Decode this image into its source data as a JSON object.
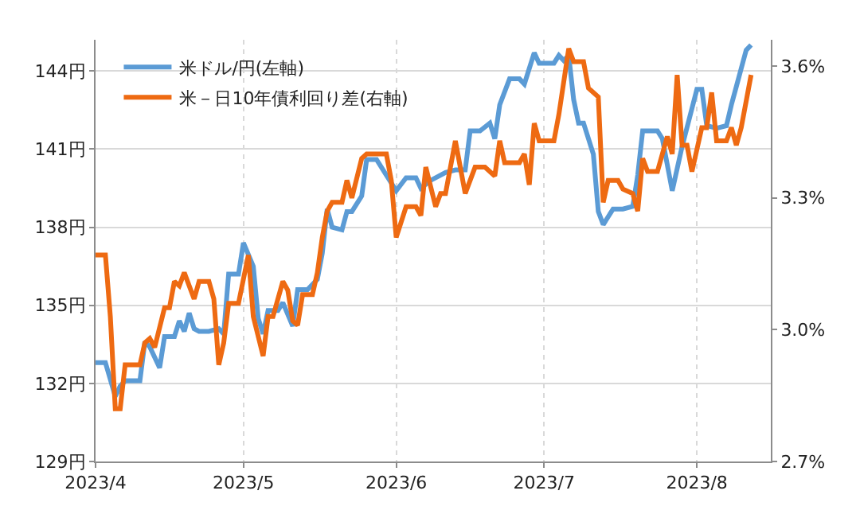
{
  "chart_data": {
    "type": "line",
    "series": [
      {
        "name": "米ドル/円(左軸)",
        "color": "#5b9bd5",
        "axis": "y",
        "x": [
          "2023-04-01",
          "2023-04-03",
          "2023-04-05",
          "2023-04-06",
          "2023-04-07",
          "2023-04-10",
          "2023-04-11",
          "2023-04-12",
          "2023-04-14",
          "2023-04-15",
          "2023-04-17",
          "2023-04-18",
          "2023-04-19",
          "2023-04-20",
          "2023-04-21",
          "2023-04-22",
          "2023-04-24",
          "2023-04-26",
          "2023-04-27",
          "2023-04-28",
          "2023-04-30",
          "2023-05-01",
          "2023-05-03",
          "2023-05-04",
          "2023-05-05",
          "2023-05-06",
          "2023-05-08",
          "2023-05-09",
          "2023-05-11",
          "2023-05-12",
          "2023-05-14",
          "2023-05-16",
          "2023-05-17",
          "2023-05-18",
          "2023-05-19",
          "2023-05-21",
          "2023-05-22",
          "2023-05-23",
          "2023-05-25",
          "2023-05-26",
          "2023-05-28",
          "2023-05-30",
          "2023-06-01",
          "2023-06-03",
          "2023-06-05",
          "2023-06-06",
          "2023-06-08",
          "2023-06-11",
          "2023-06-13",
          "2023-06-15",
          "2023-06-16",
          "2023-06-18",
          "2023-06-20",
          "2023-06-21",
          "2023-06-22",
          "2023-06-24",
          "2023-06-26",
          "2023-06-27",
          "2023-06-28",
          "2023-06-29",
          "2023-06-30",
          "2023-07-03",
          "2023-07-04",
          "2023-07-05",
          "2023-07-06",
          "2023-07-07",
          "2023-07-08",
          "2023-07-09",
          "2023-07-11",
          "2023-07-12",
          "2023-07-13",
          "2023-07-15",
          "2023-07-17",
          "2023-07-19",
          "2023-07-20",
          "2023-07-21",
          "2023-07-24",
          "2023-07-25",
          "2023-07-27",
          "2023-07-29",
          "2023-08-01",
          "2023-08-02",
          "2023-08-03",
          "2023-08-05",
          "2023-08-07",
          "2023-08-08",
          "2023-08-09",
          "2023-08-10",
          "2023-08-11",
          "2023-08-12"
        ],
        "values": [
          132.8,
          132.8,
          131.5,
          131.9,
          132.1,
          132.1,
          133.6,
          133.4,
          132.6,
          133.8,
          133.8,
          134.4,
          134.0,
          134.7,
          134.1,
          134.0,
          134.0,
          134.1,
          133.9,
          136.2,
          136.2,
          137.4,
          136.5,
          134.5,
          133.9,
          134.8,
          134.8,
          135.1,
          134.2,
          135.6,
          135.6,
          136.0,
          137.0,
          138.7,
          138.0,
          137.9,
          138.6,
          138.6,
          139.2,
          140.6,
          140.6,
          140.0,
          139.4,
          139.9,
          139.9,
          139.5,
          139.8,
          140.1,
          140.2,
          140.2,
          141.7,
          141.7,
          142.0,
          141.4,
          142.7,
          143.7,
          143.7,
          143.5,
          144.1,
          144.7,
          144.3,
          144.3,
          144.6,
          144.4,
          144.6,
          142.9,
          142.0,
          142.0,
          140.8,
          138.6,
          138.1,
          138.7,
          138.7,
          138.8,
          140.0,
          141.7,
          141.7,
          141.4,
          139.4,
          141.1,
          143.3,
          143.3,
          141.9,
          141.8,
          141.9,
          142.7,
          143.4,
          144.1,
          144.8,
          145.0
        ]
      },
      {
        "name": "米－日10年債利回り差(右軸)",
        "color": "#ee6a12",
        "axis": "y2",
        "x": [
          "2023-04-01",
          "2023-04-03",
          "2023-04-04",
          "2023-04-05",
          "2023-04-06",
          "2023-04-07",
          "2023-04-10",
          "2023-04-11",
          "2023-04-12",
          "2023-04-13",
          "2023-04-15",
          "2023-04-16",
          "2023-04-17",
          "2023-04-18",
          "2023-04-19",
          "2023-04-21",
          "2023-04-22",
          "2023-04-24",
          "2023-04-25",
          "2023-04-26",
          "2023-04-27",
          "2023-04-28",
          "2023-04-29",
          "2023-04-30",
          "2023-05-02",
          "2023-05-03",
          "2023-05-05",
          "2023-05-06",
          "2023-05-07",
          "2023-05-09",
          "2023-05-10",
          "2023-05-11",
          "2023-05-12",
          "2023-05-13",
          "2023-05-15",
          "2023-05-16",
          "2023-05-17",
          "2023-05-18",
          "2023-05-19",
          "2023-05-21",
          "2023-05-22",
          "2023-05-23",
          "2023-05-25",
          "2023-05-26",
          "2023-05-30",
          "2023-05-31",
          "2023-06-01",
          "2023-06-03",
          "2023-06-05",
          "2023-06-06",
          "2023-06-07",
          "2023-06-09",
          "2023-06-10",
          "2023-06-11",
          "2023-06-13",
          "2023-06-14",
          "2023-06-15",
          "2023-06-17",
          "2023-06-19",
          "2023-06-21",
          "2023-06-22",
          "2023-06-23",
          "2023-06-26",
          "2023-06-27",
          "2023-06-28",
          "2023-06-29",
          "2023-06-30",
          "2023-07-03",
          "2023-07-04",
          "2023-07-06",
          "2023-07-07",
          "2023-07-09",
          "2023-07-10",
          "2023-07-12",
          "2023-07-13",
          "2023-07-14",
          "2023-07-16",
          "2023-07-17",
          "2023-07-19",
          "2023-07-20",
          "2023-07-21",
          "2023-07-22",
          "2023-07-24",
          "2023-07-25",
          "2023-07-26",
          "2023-07-27",
          "2023-07-28",
          "2023-07-29",
          "2023-07-30",
          "2023-07-31",
          "2023-08-02",
          "2023-08-03",
          "2023-08-04",
          "2023-08-05",
          "2023-08-07",
          "2023-08-08",
          "2023-08-09",
          "2023-08-10",
          "2023-08-12"
        ],
        "values": [
          3.17,
          3.17,
          3.03,
          2.82,
          2.82,
          2.92,
          2.92,
          2.97,
          2.98,
          2.96,
          3.05,
          3.05,
          3.11,
          3.1,
          3.13,
          3.07,
          3.11,
          3.11,
          3.07,
          2.92,
          2.97,
          3.06,
          3.06,
          3.06,
          3.17,
          3.03,
          2.94,
          3.03,
          3.03,
          3.11,
          3.09,
          3.02,
          3.01,
          3.08,
          3.08,
          3.13,
          3.21,
          3.27,
          3.29,
          3.29,
          3.34,
          3.3,
          3.39,
          3.4,
          3.4,
          3.34,
          3.21,
          3.28,
          3.28,
          3.26,
          3.37,
          3.28,
          3.31,
          3.31,
          3.43,
          3.37,
          3.31,
          3.37,
          3.37,
          3.35,
          3.43,
          3.38,
          3.38,
          3.4,
          3.33,
          3.47,
          3.43,
          3.43,
          3.49,
          3.64,
          3.61,
          3.61,
          3.55,
          3.53,
          3.29,
          3.34,
          3.34,
          3.32,
          3.31,
          3.27,
          3.39,
          3.36,
          3.36,
          3.4,
          3.44,
          3.4,
          3.58,
          3.42,
          3.42,
          3.36,
          3.46,
          3.46,
          3.54,
          3.43,
          3.43,
          3.46,
          3.42,
          3.46,
          3.58
        ]
      }
    ],
    "xlim": [
      "2023-04-01",
      "2023-08-16"
    ],
    "xticks": [
      {
        "value": "2023-04-01",
        "label": "2023/4"
      },
      {
        "value": "2023-05-01",
        "label": "2023/5"
      },
      {
        "value": "2023-06-01",
        "label": "2023/6"
      },
      {
        "value": "2023-07-01",
        "label": "2023/7"
      },
      {
        "value": "2023-08-01",
        "label": "2023/8"
      }
    ],
    "ylim": [
      129,
      145.2
    ],
    "yticks": [
      {
        "value": 129,
        "label": "129円"
      },
      {
        "value": 132,
        "label": "132円"
      },
      {
        "value": 135,
        "label": "135円"
      },
      {
        "value": 138,
        "label": "138円"
      },
      {
        "value": 141,
        "label": "141円"
      },
      {
        "value": 144,
        "label": "144円"
      }
    ],
    "y2lim": [
      2.7,
      3.66
    ],
    "y2ticks": [
      {
        "value": 2.7,
        "label": "2.7%"
      },
      {
        "value": 3.0,
        "label": "3.0%"
      },
      {
        "value": 3.3,
        "label": "3.3%"
      },
      {
        "value": 3.6,
        "label": "3.6%"
      }
    ],
    "grid": true,
    "legend": "top left",
    "marker": "none",
    "line_style": "solid"
  }
}
